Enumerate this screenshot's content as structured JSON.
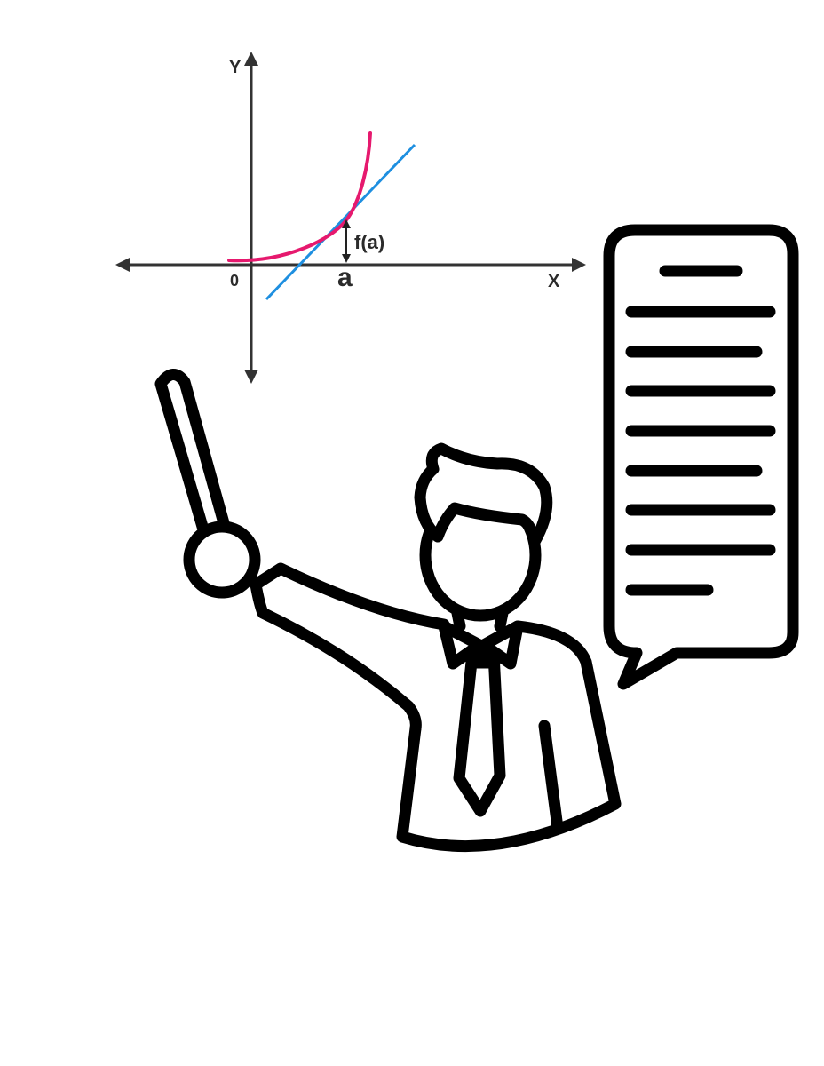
{
  "graph": {
    "y_axis_label": "Y",
    "x_axis_label": "X",
    "origin_label": "0",
    "point_label": "a",
    "value_label": "f(a)",
    "colors": {
      "axes": "#333333",
      "curve": "#e6196e",
      "tangent": "#1e8fe0"
    }
  },
  "illustration": {
    "stroke_color": "#000000",
    "background": "#ffffff",
    "speech_bubble_lines": 8
  }
}
